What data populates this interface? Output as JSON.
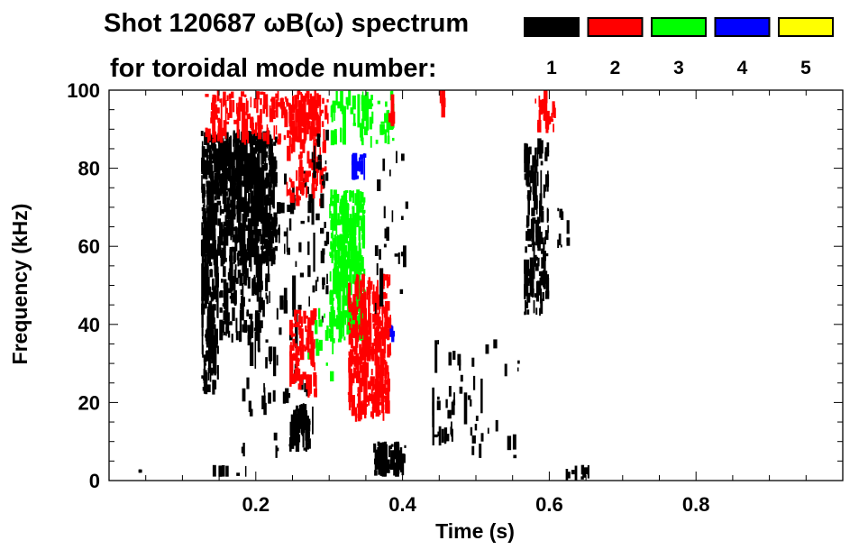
{
  "chart_data": {
    "type": "heatmap",
    "title": "Shot 120687 ωB(ω) spectrum",
    "subtitle": "for toroidal mode number:",
    "xlabel": "Time (s)",
    "ylabel": "Frequency (kHz)",
    "xlim": [
      0,
      1.0
    ],
    "ylim": [
      0,
      100
    ],
    "xticks": [
      0.2,
      0.4,
      0.6,
      0.8
    ],
    "xtick_labels": [
      "0.2",
      "0.4",
      "0.6",
      "0.8"
    ],
    "yticks": [
      0,
      20,
      40,
      60,
      80,
      100
    ],
    "ytick_labels": [
      "0",
      "20",
      "40",
      "60",
      "80",
      "100"
    ],
    "legend": [
      {
        "label": "1",
        "color": "#000000"
      },
      {
        "label": "2",
        "color": "#ff0000"
      },
      {
        "label": "3",
        "color": "#00ff00"
      },
      {
        "label": "4",
        "color": "#0000ff"
      },
      {
        "label": "5",
        "color": "#ffff00"
      }
    ],
    "legend_placement": "top-right",
    "patches": [
      {
        "mode": 1,
        "t": [
          0.125,
          0.23
        ],
        "f": [
          55,
          90
        ],
        "density": 0.75
      },
      {
        "mode": 1,
        "t": [
          0.125,
          0.15
        ],
        "f": [
          22,
          60
        ],
        "density": 0.55
      },
      {
        "mode": 1,
        "t": [
          0.15,
          0.22
        ],
        "f": [
          35,
          60
        ],
        "density": 0.25
      },
      {
        "mode": 1,
        "t": [
          0.18,
          0.28
        ],
        "f": [
          5,
          80
        ],
        "density": 0.06
      },
      {
        "mode": 1,
        "t": [
          0.125,
          0.2
        ],
        "f": [
          1,
          4
        ],
        "density": 0.12
      },
      {
        "mode": 2,
        "t": [
          0.13,
          0.29
        ],
        "f": [
          86,
          100
        ],
        "density": 0.3
      },
      {
        "mode": 2,
        "t": [
          0.24,
          0.3
        ],
        "f": [
          70,
          100
        ],
        "density": 0.25
      },
      {
        "mode": 2,
        "t": [
          0.245,
          0.285
        ],
        "f": [
          21,
          45
        ],
        "density": 0.35
      },
      {
        "mode": 1,
        "t": [
          0.245,
          0.275
        ],
        "f": [
          7,
          20
        ],
        "density": 0.7
      },
      {
        "mode": 1,
        "t": [
          0.27,
          0.3
        ],
        "f": [
          40,
          90
        ],
        "density": 0.1
      },
      {
        "mode": 3,
        "t": [
          0.3,
          0.35
        ],
        "f": [
          35,
          75
        ],
        "density": 0.6
      },
      {
        "mode": 3,
        "t": [
          0.3,
          0.39
        ],
        "f": [
          85,
          100
        ],
        "density": 0.2
      },
      {
        "mode": 3,
        "t": [
          0.27,
          0.31
        ],
        "f": [
          25,
          45
        ],
        "density": 0.08
      },
      {
        "mode": 4,
        "t": [
          0.33,
          0.355
        ],
        "f": [
          77,
          84
        ],
        "density": 0.3
      },
      {
        "mode": 4,
        "t": [
          0.38,
          0.39
        ],
        "f": [
          35,
          40
        ],
        "density": 0.3
      },
      {
        "mode": 2,
        "t": [
          0.325,
          0.385
        ],
        "f": [
          15,
          53
        ],
        "density": 0.55
      },
      {
        "mode": 2,
        "t": [
          0.38,
          0.39
        ],
        "f": [
          90,
          100
        ],
        "density": 0.2
      },
      {
        "mode": 1,
        "t": [
          0.36,
          0.405
        ],
        "f": [
          1,
          10
        ],
        "density": 0.65
      },
      {
        "mode": 1,
        "t": [
          0.36,
          0.41
        ],
        "f": [
          40,
          85
        ],
        "density": 0.04
      },
      {
        "mode": 1,
        "t": [
          0.44,
          0.56
        ],
        "f": [
          5,
          40
        ],
        "density": 0.04
      },
      {
        "mode": 1,
        "t": [
          0.44,
          0.47
        ],
        "f": [
          9,
          14
        ],
        "density": 0.3
      },
      {
        "mode": 1,
        "t": [
          0.565,
          0.6
        ],
        "f": [
          42,
          88
        ],
        "density": 0.35
      },
      {
        "mode": 2,
        "t": [
          0.58,
          0.61
        ],
        "f": [
          88,
          100
        ],
        "density": 0.3
      },
      {
        "mode": 1,
        "t": [
          0.61,
          0.63
        ],
        "f": [
          58,
          70
        ],
        "density": 0.15
      },
      {
        "mode": 1,
        "t": [
          0.62,
          0.655
        ],
        "f": [
          0,
          4
        ],
        "density": 0.25
      },
      {
        "mode": 1,
        "t": [
          0.04,
          0.045
        ],
        "f": [
          2,
          3
        ],
        "density": 0.8
      },
      {
        "mode": 2,
        "t": [
          0.45,
          0.46
        ],
        "f": [
          93,
          100
        ],
        "density": 0.3
      }
    ]
  }
}
